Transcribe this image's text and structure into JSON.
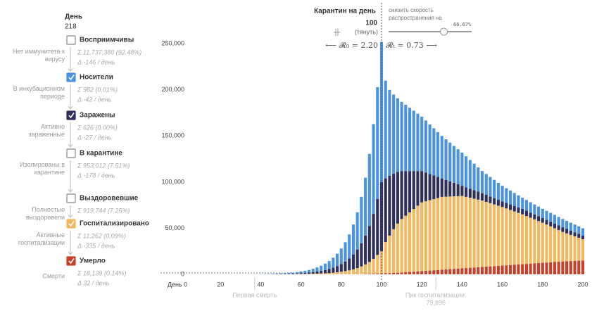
{
  "chart_data": {
    "type": "bar",
    "stacked": true,
    "day_label": "День",
    "day_value": "218",
    "quarantine_label": "Карантин на день",
    "quarantine_day": 100,
    "drag_hint": "(тянуть)",
    "slider_label": [
      "снизить скорость",
      "распространения на"
    ],
    "slider_value_label": "66.67%",
    "slider_value": 66.67,
    "r0_label": "⟵ 𝓡₀ = 2.20",
    "rt_label": "𝓡ₜ = 0.73 ⟶",
    "xlim": [
      -3,
      201
    ],
    "xticks": [
      {
        "value": 0,
        "label": "День 0"
      },
      20,
      40,
      60,
      80,
      100,
      120,
      140,
      160,
      180,
      200
    ],
    "ylim": [
      0,
      270000
    ],
    "yticks": [
      {
        "value": 0,
        "label": "0"
      },
      {
        "value": 50000,
        "label": "50,000"
      },
      {
        "value": 100000,
        "label": "100,000"
      },
      {
        "value": 150000,
        "label": "150,000"
      },
      {
        "value": 200000,
        "label": "200,000"
      },
      {
        "value": 250000,
        "label": "250,000"
      }
    ],
    "annotations": [
      {
        "x": 37,
        "lines": [
          "Первая смерть"
        ]
      },
      {
        "x": 127,
        "lines": [
          "Пик госпитализации:",
          "79,896"
        ]
      }
    ],
    "other_compartments": [
      {
        "name": "Восприимчивы",
        "note": [
          "Нет иммунитета к",
          "вирусу"
        ],
        "total": "Σ 11,737,380 (92.48%)",
        "delta": "Δ -146 / день"
      },
      {
        "name": "В карантине",
        "note": [
          "Изолированы в",
          "карантине"
        ],
        "total": "Σ 953,012 (7.51%)",
        "delta": "Δ -178 / день"
      },
      {
        "name": "Выздоровевшие",
        "note": [
          "Полностью",
          "выздоровели"
        ],
        "total": "Σ 919,744 (7.25%)"
      }
    ],
    "x": [
      0,
      2,
      4,
      6,
      8,
      10,
      12,
      14,
      16,
      18,
      20,
      22,
      24,
      26,
      28,
      30,
      32,
      34,
      36,
      38,
      40,
      42,
      44,
      46,
      48,
      50,
      52,
      54,
      56,
      58,
      60,
      62,
      64,
      66,
      68,
      70,
      72,
      74,
      76,
      78,
      80,
      82,
      84,
      86,
      88,
      90,
      92,
      94,
      96,
      98,
      100,
      102,
      104,
      106,
      108,
      110,
      112,
      114,
      116,
      118,
      120,
      122,
      124,
      126,
      128,
      130,
      132,
      134,
      136,
      138,
      140,
      142,
      144,
      146,
      148,
      150,
      152,
      154,
      156,
      158,
      160,
      162,
      164,
      166,
      168,
      170,
      172,
      174,
      176,
      178,
      180,
      182,
      184,
      186,
      188,
      190,
      192,
      194,
      196,
      198,
      200
    ],
    "series": [
      {
        "name": "Умерло",
        "color": "#c8402a",
        "note": [
          "Смерти"
        ],
        "total": "Σ 18,139 (0.14%)",
        "delta": "Δ 32 / день",
        "values": [
          0,
          0,
          0,
          0,
          0,
          0,
          0,
          0,
          0,
          0,
          0,
          0,
          0,
          0,
          0,
          0,
          0,
          0,
          0,
          0,
          0,
          0,
          0,
          0,
          0,
          0,
          0,
          0,
          0,
          0,
          0,
          0,
          0,
          0,
          0,
          0,
          0,
          0,
          0,
          0,
          0,
          0,
          0,
          0,
          0,
          200,
          300,
          400,
          600,
          800,
          1000,
          1200,
          1400,
          1600,
          1800,
          2000,
          2300,
          2600,
          2900,
          3200,
          3500,
          3800,
          4100,
          4400,
          4700,
          5000,
          5300,
          5600,
          5900,
          6200,
          6500,
          6800,
          7100,
          7400,
          7700,
          8000,
          8300,
          8600,
          8900,
          9200,
          9500,
          9800,
          10100,
          10400,
          10700,
          11000,
          11300,
          11600,
          11900,
          12200,
          12500,
          12800,
          13100,
          13400,
          13700,
          14000,
          14200,
          14400,
          14600,
          14800,
          15000
        ]
      },
      {
        "name": "Госпитализировано",
        "color": "#f2b860",
        "note": [
          "Активные",
          "госпитализации"
        ],
        "total": "Σ 11,262 (0.09%)",
        "delta": "Δ -335 / день",
        "values": [
          1,
          1,
          1,
          1,
          1,
          1,
          1,
          2,
          3,
          3,
          4,
          5,
          6,
          7,
          9,
          11,
          14,
          18,
          22,
          28,
          34,
          43,
          53,
          66,
          83,
          103,
          128,
          160,
          199,
          248,
          310,
          386,
          480,
          599,
          746,
          930,
          1160,
          1440,
          1800,
          2240,
          2790,
          3480,
          4330,
          5400,
          6730,
          8390,
          10450,
          13020,
          16230,
          20220,
          24000,
          33800,
          40600,
          47400,
          53200,
          58000,
          61300,
          64600,
          67900,
          71200,
          74500,
          75400,
          76300,
          77200,
          78100,
          79000,
          78900,
          78800,
          78700,
          78600,
          78500,
          77200,
          75900,
          74600,
          73300,
          72000,
          70300,
          68600,
          66900,
          65200,
          63500,
          61600,
          59700,
          57800,
          55900,
          54000,
          51900,
          49800,
          47700,
          45600,
          43500,
          41200,
          38900,
          36600,
          34300,
          32000,
          30200,
          28400,
          26600,
          24800,
          23000
        ]
      },
      {
        "name": "Заражены",
        "color": "#2e2f5c",
        "note": [
          "Активно",
          "зараженные"
        ],
        "total": "Σ 626 (0.00%)",
        "delta": "Δ -27 / день",
        "values": [
          1,
          1,
          1,
          2,
          3,
          4,
          5,
          6,
          7,
          9,
          11,
          14,
          18,
          22,
          27,
          34,
          43,
          53,
          66,
          83,
          102,
          129,
          159,
          198,
          249,
          309,
          384,
          480,
          597,
          744,
          930,
          1158,
          1440,
          1797,
          2238,
          2790,
          3480,
          4320,
          5400,
          6720,
          8370,
          10440,
          12990,
          16200,
          20190,
          25170,
          31350,
          39060,
          48690,
          60660,
          75000,
          69000,
          65000,
          60000,
          56000,
          52000,
          48400,
          44800,
          41200,
          37600,
          34000,
          31200,
          28400,
          25600,
          22800,
          20000,
          18200,
          16400,
          14600,
          12800,
          11000,
          10400,
          9800,
          9200,
          8600,
          8000,
          7600,
          7200,
          6800,
          6400,
          6000,
          6000,
          6000,
          6000,
          6000,
          6000,
          5800,
          5600,
          5400,
          5200,
          5000,
          5000,
          5000,
          5000,
          5000,
          5000,
          4800,
          4600,
          4400,
          4200,
          4000
        ]
      },
      {
        "name": "Носители",
        "color": "#4b93df",
        "note": [
          "В инкубационном",
          "периоде"
        ],
        "total": "Σ 982 (0.01%)",
        "delta": "Δ -42 / день",
        "values": [
          2,
          3,
          4,
          5,
          6,
          7,
          10,
          12,
          14,
          18,
          23,
          28,
          35,
          44,
          55,
          68,
          85,
          106,
          132,
          165,
          204,
          258,
          318,
          396,
          498,
          618,
          768,
          960,
          1194,
          1488,
          1860,
          2316,
          2880,
          3594,
          4476,
          5580,
          6960,
          8640,
          10800,
          13440,
          16740,
          20880,
          25980,
          32400,
          40380,
          50340,
          62700,
          78120,
          97380,
          121320,
          152000,
          106000,
          93000,
          86000,
          80000,
          75000,
          71800,
          68600,
          65400,
          62200,
          59000,
          56400,
          53800,
          51200,
          48600,
          46000,
          44000,
          42000,
          40000,
          38000,
          36000,
          33600,
          31200,
          28800,
          26400,
          24000,
          22600,
          21200,
          19800,
          18400,
          17000,
          16000,
          15000,
          14000,
          13000,
          12000,
          11600,
          11200,
          10800,
          10400,
          10000,
          9800,
          9600,
          9400,
          9200,
          9000,
          8800,
          8600,
          8400,
          8200,
          8000
        ]
      }
    ]
  }
}
